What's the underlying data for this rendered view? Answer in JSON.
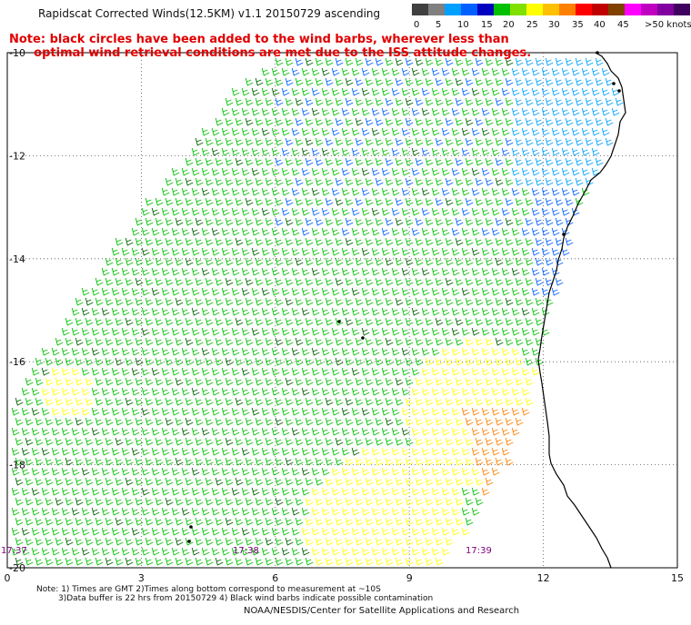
{
  "title": "Rapidscat Corrected Winds(12.5KM) v1.1 20150729 ascending",
  "note_lines": [
    "Note: black circles have been added to the wind barbs, wherever less than",
    "      optimal wind retrieval conditions are met due to the ISS attitude changes."
  ],
  "colorbar": {
    "colors": [
      "#404040",
      "#808080",
      "#00a0ff",
      "#0060ff",
      "#0000c0",
      "#00c000",
      "#80e000",
      "#ffff00",
      "#ffc000",
      "#ff8000",
      "#ff0000",
      "#c00000",
      "#804000",
      "#ff00ff",
      "#c000c0",
      "#8000a0",
      "#400060"
    ],
    "labels": [
      "0",
      "5",
      "10",
      "15",
      "20",
      "25",
      "30",
      "35",
      "40",
      "45",
      ">50 knots"
    ]
  },
  "axes": {
    "x_ticks": [
      "0",
      "3",
      "6",
      "9",
      "12",
      "15"
    ],
    "y_ticks": [
      "-10",
      "-12",
      "-14",
      "-16",
      "-18",
      "-20"
    ],
    "xlim": [
      0,
      15
    ],
    "ylim": [
      -20,
      -10
    ]
  },
  "times": [
    "17:37",
    "17:38",
    "17:39"
  ],
  "footnote_lines": [
    "Note: 1) Times are GMT 2)Times along bottom correspond to measurement at ~10S",
    "3)Data buffer is 22 hrs from 20150729 4) Black wind barbs indicate possible contamination"
  ],
  "credit": "NOAA/NESDIS/Center for Satellite Applications and Research",
  "legend_units": "knots"
}
